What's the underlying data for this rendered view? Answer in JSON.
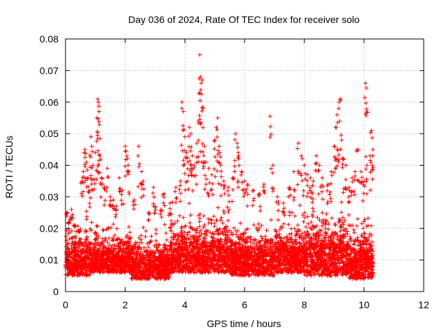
{
  "chart_data": {
    "type": "scatter",
    "title": "Day 036 of 2024, Rate Of TEC Index for receiver solo",
    "xlabel": "GPS time / hours",
    "ylabel": "ROTI / TECUs",
    "xlim": [
      0,
      12
    ],
    "ylim": [
      0,
      0.08
    ],
    "xticks": [
      0,
      2,
      4,
      6,
      8,
      10,
      12
    ],
    "xtick_labels": [
      "0",
      "2",
      "4",
      "6",
      "8",
      "10",
      "12"
    ],
    "yticks": [
      0,
      0.01,
      0.02,
      0.03,
      0.04,
      0.05,
      0.06,
      0.07,
      0.08
    ],
    "ytick_labels": [
      "0",
      "0.01",
      "0.02",
      "0.03",
      "0.04",
      "0.05",
      "0.06",
      "0.07",
      "0.08"
    ],
    "grid": true,
    "marker": "+",
    "color": "#ff0000",
    "data_extent_hours": [
      0,
      10.3
    ],
    "series": [
      {
        "name": "ROTI",
        "points": [
          [
            0.05,
            0.025
          ],
          [
            0.12,
            0.022
          ],
          [
            0.2,
            0.026
          ],
          [
            0.3,
            0.021
          ],
          [
            0.45,
            0.019
          ],
          [
            0.55,
            0.035
          ],
          [
            0.6,
            0.038
          ],
          [
            0.65,
            0.045
          ],
          [
            0.7,
            0.041
          ],
          [
            0.75,
            0.036
          ],
          [
            0.8,
            0.032
          ],
          [
            0.85,
            0.049
          ],
          [
            0.88,
            0.046
          ],
          [
            0.92,
            0.04
          ],
          [
            1.0,
            0.044
          ],
          [
            1.05,
            0.055
          ],
          [
            1.08,
            0.061
          ],
          [
            1.1,
            0.06
          ],
          [
            1.12,
            0.057
          ],
          [
            1.15,
            0.043
          ],
          [
            1.2,
            0.036
          ],
          [
            1.3,
            0.033
          ],
          [
            1.4,
            0.039
          ],
          [
            1.5,
            0.03
          ],
          [
            1.6,
            0.029
          ],
          [
            1.7,
            0.027
          ],
          [
            1.8,
            0.036
          ],
          [
            1.9,
            0.032
          ],
          [
            2.0,
            0.046
          ],
          [
            2.05,
            0.043
          ],
          [
            2.1,
            0.04
          ],
          [
            2.3,
            0.029
          ],
          [
            2.45,
            0.046
          ],
          [
            2.55,
            0.038
          ],
          [
            2.6,
            0.035
          ],
          [
            2.8,
            0.025
          ],
          [
            2.95,
            0.033
          ],
          [
            3.0,
            0.027
          ],
          [
            3.2,
            0.026
          ],
          [
            3.3,
            0.031
          ],
          [
            3.5,
            0.028
          ],
          [
            3.7,
            0.033
          ],
          [
            3.85,
            0.035
          ],
          [
            3.9,
            0.06
          ],
          [
            3.95,
            0.057
          ],
          [
            4.0,
            0.049
          ],
          [
            4.05,
            0.044
          ],
          [
            4.1,
            0.041
          ],
          [
            4.15,
            0.052
          ],
          [
            4.2,
            0.05
          ],
          [
            4.25,
            0.043
          ],
          [
            4.3,
            0.04
          ],
          [
            4.4,
            0.047
          ],
          [
            4.45,
            0.054
          ],
          [
            4.5,
            0.075
          ],
          [
            4.52,
            0.068
          ],
          [
            4.55,
            0.066
          ],
          [
            4.58,
            0.067
          ],
          [
            4.6,
            0.058
          ],
          [
            4.65,
            0.046
          ],
          [
            4.7,
            0.041
          ],
          [
            4.8,
            0.039
          ],
          [
            4.9,
            0.037
          ],
          [
            5.0,
            0.048
          ],
          [
            5.05,
            0.052
          ],
          [
            5.1,
            0.055
          ],
          [
            5.15,
            0.046
          ],
          [
            5.2,
            0.04
          ],
          [
            5.3,
            0.035
          ],
          [
            5.45,
            0.033
          ],
          [
            5.6,
            0.036
          ],
          [
            5.7,
            0.05
          ],
          [
            5.75,
            0.047
          ],
          [
            5.8,
            0.043
          ],
          [
            5.9,
            0.038
          ],
          [
            6.0,
            0.035
          ],
          [
            6.1,
            0.034
          ],
          [
            6.3,
            0.032
          ],
          [
            6.5,
            0.031
          ],
          [
            6.65,
            0.034
          ],
          [
            6.85,
            0.0555
          ],
          [
            6.95,
            0.04
          ],
          [
            7.1,
            0.03
          ],
          [
            7.3,
            0.028
          ],
          [
            7.5,
            0.033
          ],
          [
            7.65,
            0.038
          ],
          [
            7.8,
            0.047
          ],
          [
            7.9,
            0.043
          ],
          [
            8.0,
            0.04
          ],
          [
            8.1,
            0.037
          ],
          [
            8.2,
            0.036
          ],
          [
            8.3,
            0.035
          ],
          [
            8.4,
            0.043
          ],
          [
            8.5,
            0.04
          ],
          [
            8.6,
            0.036
          ],
          [
            8.8,
            0.034
          ],
          [
            8.9,
            0.038
          ],
          [
            9.0,
            0.046
          ],
          [
            9.05,
            0.052
          ],
          [
            9.1,
            0.056
          ],
          [
            9.15,
            0.058
          ],
          [
            9.2,
            0.061
          ],
          [
            9.25,
            0.048
          ],
          [
            9.3,
            0.042
          ],
          [
            9.4,
            0.04
          ],
          [
            9.5,
            0.033
          ],
          [
            9.6,
            0.036
          ],
          [
            9.7,
            0.038
          ],
          [
            9.8,
            0.045
          ],
          [
            9.9,
            0.038
          ],
          [
            10.0,
            0.035
          ],
          [
            10.05,
            0.066
          ],
          [
            10.08,
            0.0645
          ],
          [
            10.1,
            0.04
          ],
          [
            10.2,
            0.043
          ],
          [
            10.25,
            0.051
          ],
          [
            10.3,
            0.045
          ]
        ],
        "baseline_band": {
          "description": "dense band of points",
          "segments": [
            {
              "x": [
                0,
                0.8
              ],
              "y": [
                0.005,
                0.026
              ]
            },
            {
              "x": [
                0.8,
                2.2
              ],
              "y": [
                0.006,
                0.024
              ]
            },
            {
              "x": [
                2.2,
                3.5
              ],
              "y": [
                0.004,
                0.022
              ]
            },
            {
              "x": [
                3.5,
                5.5
              ],
              "y": [
                0.006,
                0.03
              ]
            },
            {
              "x": [
                5.5,
                7.0
              ],
              "y": [
                0.005,
                0.026
              ]
            },
            {
              "x": [
                7.0,
                8.0
              ],
              "y": [
                0.006,
                0.028
              ]
            },
            {
              "x": [
                8.0,
                9.5
              ],
              "y": [
                0.005,
                0.032
              ]
            },
            {
              "x": [
                9.5,
                10.3
              ],
              "y": [
                0.004,
                0.027
              ]
            }
          ]
        }
      }
    ]
  }
}
